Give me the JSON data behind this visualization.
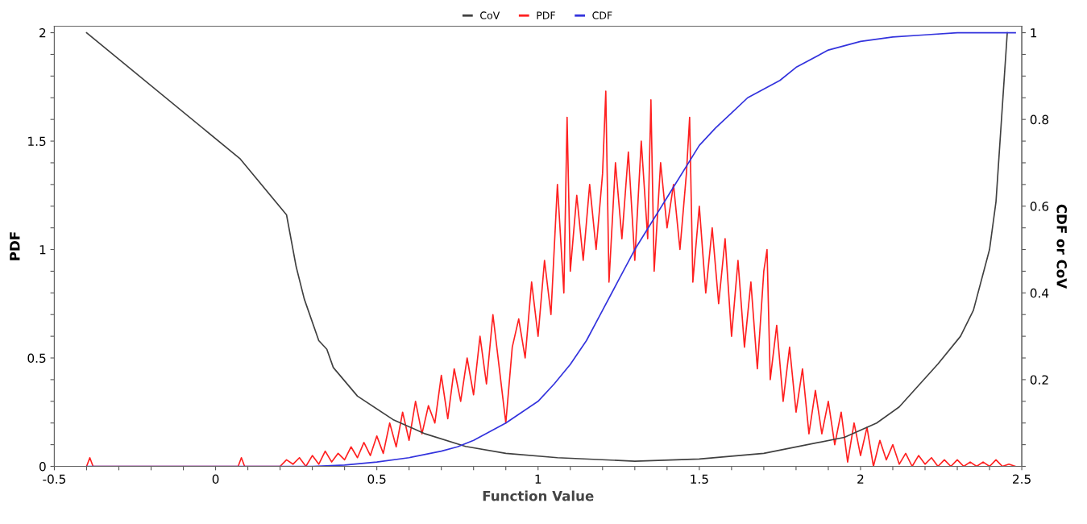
{
  "chart_data": {
    "type": "line",
    "xlabel": "Function Value",
    "ylabel": "PDF",
    "y2label": "CDF or CoV",
    "legend": "top",
    "grid": false,
    "marker": "none",
    "line_style": "solid",
    "xlim": [
      -0.5,
      2.5
    ],
    "ylim": [
      0,
      2.03
    ],
    "y2lim": [
      0,
      1.015
    ],
    "xticks": [
      -0.5,
      {
        "value": -0.4,
        "label": null
      },
      {
        "value": -0.3,
        "label": null
      },
      {
        "value": -0.2,
        "label": null
      },
      {
        "value": -0.1,
        "label": null
      },
      0,
      {
        "value": 0.1,
        "label": null
      },
      {
        "value": 0.2,
        "label": null
      },
      {
        "value": 0.3,
        "label": null
      },
      {
        "value": 0.4,
        "label": null
      },
      0.5,
      {
        "value": 0.6,
        "label": null
      },
      {
        "value": 0.7,
        "label": null
      },
      {
        "value": 0.8,
        "label": null
      },
      {
        "value": 0.9,
        "label": null
      },
      1,
      {
        "value": 1.1,
        "label": null
      },
      {
        "value": 1.2,
        "label": null
      },
      {
        "value": 1.3,
        "label": null
      },
      {
        "value": 1.4,
        "label": null
      },
      1.5,
      {
        "value": 1.6,
        "label": null
      },
      {
        "value": 1.7,
        "label": null
      },
      {
        "value": 1.8,
        "label": null
      },
      {
        "value": 1.9,
        "label": null
      },
      2,
      {
        "value": 2.1,
        "label": null
      },
      {
        "value": 2.2,
        "label": null
      },
      {
        "value": 2.3,
        "label": null
      },
      {
        "value": 2.4,
        "label": null
      },
      2.5
    ],
    "yticks": [
      0,
      {
        "value": 0.1,
        "label": null
      },
      {
        "value": 0.2,
        "label": null
      },
      {
        "value": 0.3,
        "label": null
      },
      {
        "value": 0.4,
        "label": null
      },
      0.5,
      {
        "value": 0.6,
        "label": null
      },
      {
        "value": 0.7,
        "label": null
      },
      {
        "value": 0.8,
        "label": null
      },
      {
        "value": 0.9,
        "label": null
      },
      1,
      {
        "value": 1.1,
        "label": null
      },
      {
        "value": 1.2,
        "label": null
      },
      {
        "value": 1.3,
        "label": null
      },
      {
        "value": 1.4,
        "label": null
      },
      1.5,
      {
        "value": 1.6,
        "label": null
      },
      {
        "value": 1.7,
        "label": null
      },
      {
        "value": 1.8,
        "label": null
      },
      {
        "value": 1.9,
        "label": null
      },
      2
    ],
    "y2ticks": [
      {
        "value": 0,
        "label": null
      },
      {
        "value": 0.05,
        "label": null
      },
      {
        "value": 0.1,
        "label": null
      },
      {
        "value": 0.15,
        "label": null
      },
      0.2,
      {
        "value": 0.25,
        "label": null
      },
      {
        "value": 0.3,
        "label": null
      },
      {
        "value": 0.35,
        "label": null
      },
      0.4,
      {
        "value": 0.45,
        "label": null
      },
      {
        "value": 0.5,
        "label": null
      },
      {
        "value": 0.55,
        "label": null
      },
      0.6,
      {
        "value": 0.65,
        "label": null
      },
      {
        "value": 0.7,
        "label": null
      },
      {
        "value": 0.75,
        "label": null
      },
      0.8,
      {
        "value": 0.85,
        "label": null
      },
      {
        "value": 0.9,
        "label": null
      },
      {
        "value": 0.95,
        "label": null
      },
      1
    ],
    "series": [
      {
        "name": "CoV",
        "color": "#404040",
        "axis": "y2",
        "x": [
          -0.4,
          0.075,
          0.22,
          0.25,
          0.275,
          0.32,
          0.345,
          0.365,
          0.44,
          0.55,
          0.65,
          0.775,
          0.9,
          1.06,
          1.3,
          1.5,
          1.7,
          1.95,
          2.05,
          2.12,
          2.24,
          2.31,
          2.35,
          2.4,
          2.42,
          2.455
        ],
        "values": [
          1.0,
          0.71,
          0.58,
          0.46,
          0.386,
          0.29,
          0.27,
          0.228,
          0.162,
          0.108,
          0.075,
          0.046,
          0.03,
          0.02,
          0.012,
          0.017,
          0.03,
          0.067,
          0.1,
          0.137,
          0.236,
          0.3,
          0.36,
          0.5,
          0.61,
          1.0
        ]
      },
      {
        "name": "PDF",
        "color": "#ff2020",
        "x": [
          -0.4,
          -0.39,
          -0.38,
          0.07,
          0.08,
          0.09,
          0.2,
          0.22,
          0.24,
          0.26,
          0.28,
          0.3,
          0.32,
          0.34,
          0.36,
          0.38,
          0.4,
          0.42,
          0.44,
          0.46,
          0.48,
          0.5,
          0.52,
          0.54,
          0.56,
          0.58,
          0.6,
          0.62,
          0.64,
          0.66,
          0.68,
          0.7,
          0.72,
          0.74,
          0.76,
          0.78,
          0.8,
          0.82,
          0.84,
          0.86,
          0.88,
          0.9,
          0.92,
          0.94,
          0.96,
          0.98,
          1.0,
          1.02,
          1.04,
          1.06,
          1.08,
          1.09,
          1.1,
          1.12,
          1.14,
          1.16,
          1.18,
          1.2,
          1.21,
          1.22,
          1.24,
          1.26,
          1.28,
          1.3,
          1.32,
          1.34,
          1.35,
          1.36,
          1.38,
          1.4,
          1.42,
          1.44,
          1.46,
          1.47,
          1.48,
          1.5,
          1.52,
          1.54,
          1.56,
          1.58,
          1.6,
          1.62,
          1.64,
          1.66,
          1.68,
          1.7,
          1.71,
          1.72,
          1.74,
          1.76,
          1.78,
          1.8,
          1.82,
          1.84,
          1.86,
          1.88,
          1.9,
          1.92,
          1.94,
          1.96,
          1.98,
          2.0,
          2.02,
          2.04,
          2.06,
          2.08,
          2.1,
          2.12,
          2.14,
          2.16,
          2.18,
          2.2,
          2.22,
          2.24,
          2.26,
          2.28,
          2.3,
          2.32,
          2.34,
          2.36,
          2.38,
          2.4,
          2.42,
          2.44,
          2.46,
          2.48
        ],
        "values": [
          0,
          0.04,
          0,
          0,
          0.04,
          0,
          0,
          0.03,
          0.01,
          0.04,
          0.0,
          0.05,
          0.01,
          0.07,
          0.02,
          0.06,
          0.03,
          0.09,
          0.04,
          0.11,
          0.05,
          0.14,
          0.06,
          0.2,
          0.09,
          0.25,
          0.12,
          0.3,
          0.15,
          0.28,
          0.2,
          0.42,
          0.22,
          0.45,
          0.3,
          0.5,
          0.33,
          0.6,
          0.38,
          0.7,
          0.45,
          0.2,
          0.55,
          0.68,
          0.5,
          0.85,
          0.6,
          0.95,
          0.7,
          1.3,
          0.8,
          1.61,
          0.9,
          1.25,
          0.95,
          1.3,
          1.0,
          1.35,
          1.73,
          0.85,
          1.4,
          1.05,
          1.45,
          0.95,
          1.5,
          1.05,
          1.69,
          0.9,
          1.4,
          1.1,
          1.3,
          1.0,
          1.35,
          1.61,
          0.85,
          1.2,
          0.8,
          1.1,
          0.75,
          1.05,
          0.6,
          0.95,
          0.55,
          0.85,
          0.45,
          0.9,
          1.0,
          0.4,
          0.65,
          0.3,
          0.55,
          0.25,
          0.45,
          0.15,
          0.35,
          0.15,
          0.3,
          0.1,
          0.25,
          0.02,
          0.2,
          0.05,
          0.18,
          0.0,
          0.12,
          0.03,
          0.1,
          0.01,
          0.06,
          0.0,
          0.05,
          0.01,
          0.04,
          0.0,
          0.03,
          0.0,
          0.03,
          0.0,
          0.02,
          0.0,
          0.02,
          0.0,
          0.03,
          0.0,
          0.01,
          0
        ]
      },
      {
        "name": "CDF",
        "color": "#3333dd",
        "axis": "y2",
        "x": [
          -0.4,
          0.3,
          0.4,
          0.5,
          0.6,
          0.7,
          0.75,
          0.8,
          0.85,
          0.9,
          0.95,
          1.0,
          1.05,
          1.1,
          1.15,
          1.2,
          1.25,
          1.3,
          1.4,
          1.5,
          1.55,
          1.6,
          1.65,
          1.7,
          1.75,
          1.8,
          1.9,
          2.0,
          2.1,
          2.2,
          2.3,
          2.48
        ],
        "values": [
          0,
          0,
          0.003,
          0.01,
          0.02,
          0.035,
          0.045,
          0.06,
          0.08,
          0.1,
          0.125,
          0.15,
          0.19,
          0.235,
          0.29,
          0.36,
          0.43,
          0.5,
          0.62,
          0.74,
          0.78,
          0.815,
          0.85,
          0.87,
          0.89,
          0.92,
          0.96,
          0.98,
          0.99,
          0.995,
          1.0,
          1.0
        ]
      }
    ]
  }
}
